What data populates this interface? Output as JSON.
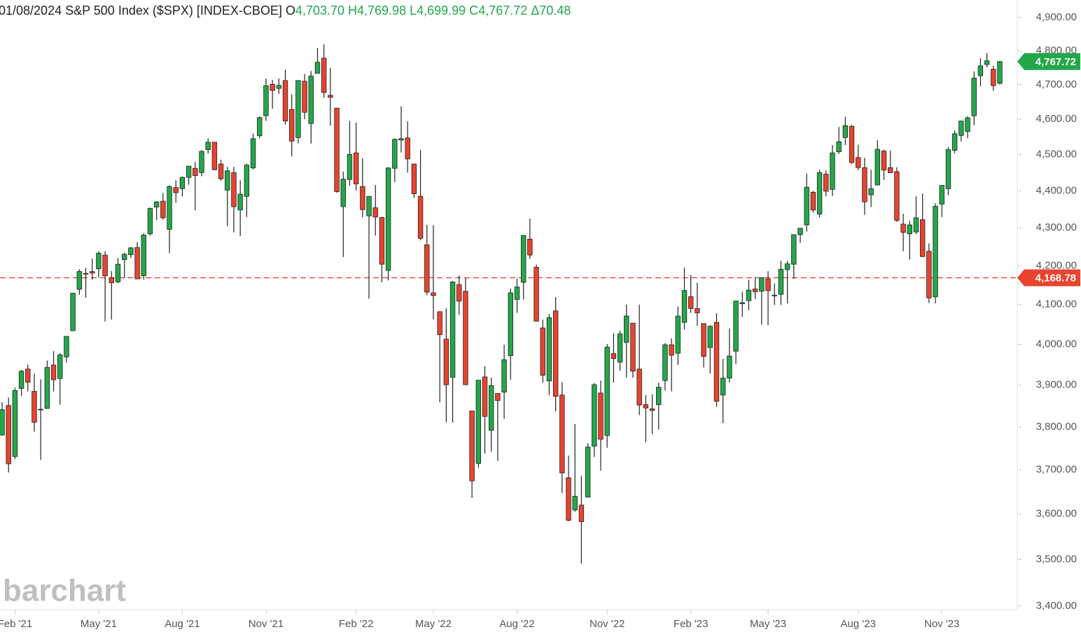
{
  "chart_data": {
    "type": "candlestick",
    "title": "01/08/2024 S&P 500 Index ($SPX) [INDEX-CBOE]",
    "header_values": [
      {
        "label": "O",
        "value": "4,703.70"
      },
      {
        "label": "H",
        "value": "4,769.98"
      },
      {
        "label": "L",
        "value": "4,699.99"
      },
      {
        "label": "C",
        "value": "4,767.72"
      },
      {
        "label": "Δ",
        "value": "70.48"
      }
    ],
    "watermark": "barchart",
    "log_scale": true,
    "up_color": "#22a84a",
    "down_color": "#e8432f",
    "ylim": [
      3400,
      4900
    ],
    "yticks": [
      {
        "value": 3400,
        "label": "3,400.00"
      },
      {
        "value": 3500,
        "label": "3,500.00"
      },
      {
        "value": 3600,
        "label": "3,600.00"
      },
      {
        "value": 3700,
        "label": "3,700.00"
      },
      {
        "value": 3800,
        "label": "3,800.00"
      },
      {
        "value": 3900,
        "label": "3,900.00"
      },
      {
        "value": 4000,
        "label": "4,000.00"
      },
      {
        "value": 4100,
        "label": "4,100.00"
      },
      {
        "value": 4200,
        "label": "4,200.00"
      },
      {
        "value": 4300,
        "label": "4,300.00"
      },
      {
        "value": 4400,
        "label": "4,400.00"
      },
      {
        "value": 4500,
        "label": "4,500.00"
      },
      {
        "value": 4600,
        "label": "4,600.00"
      },
      {
        "value": 4700,
        "label": "4,700.00"
      },
      {
        "value": 4800,
        "label": "4,800.00"
      },
      {
        "value": 4900,
        "label": "4,900.00"
      }
    ],
    "xticks": [
      {
        "value": 2,
        "label": "Feb '21"
      },
      {
        "value": 15,
        "label": "May '21"
      },
      {
        "value": 28,
        "label": "Aug '21"
      },
      {
        "value": 41,
        "label": "Nov '21"
      },
      {
        "value": 55,
        "label": "Feb '22"
      },
      {
        "value": 67,
        "label": "May '22"
      },
      {
        "value": 80,
        "label": "Aug '22"
      },
      {
        "value": 94,
        "label": "Nov '22"
      },
      {
        "value": 107,
        "label": "Feb '23"
      },
      {
        "value": 119,
        "label": "May '23"
      },
      {
        "value": 133,
        "label": "Aug '23"
      },
      {
        "value": 146,
        "label": "Nov '23"
      }
    ],
    "last_price": {
      "value": 4767.72,
      "label": "4,767.72"
    },
    "reference_line": {
      "value": 4168.78,
      "label": "4,168.78"
    },
    "open": [
      3781,
      3851,
      3731,
      3892,
      3939,
      3885,
      3842,
      3844,
      3949,
      3916,
      3969,
      4034,
      4139,
      4179,
      4185,
      4192,
      4228,
      4169,
      4158,
      4216,
      4229,
      4248,
      4174,
      4284,
      4356,
      4372,
      4296,
      4409,
      4406,
      4437,
      4462,
      4450,
      4514,
      4535,
      4474,
      4402,
      4450,
      4348,
      4385,
      4463,
      4553,
      4610,
      4701,
      4689,
      4712,
      4628,
      4548,
      4710,
      4588,
      4733,
      4778,
      4669,
      4632,
      4357,
      4431,
      4505,
      4412,
      4332,
      4354,
      4328,
      4188,
      4462,
      4541,
      4547,
      4474,
      4385,
      4255,
      4130,
      4082,
      4013,
      3919,
      4151,
      4134,
      3838,
      3715,
      3920,
      3792,
      3880,
      3883,
      3972,
      4113,
      4157,
      4270,
      4196,
      4041,
      3910,
      4084,
      3876,
      3682,
      3609,
      3620,
      3638,
      3755,
      3881,
      3780,
      3977,
      3956,
      4005,
      4053,
      3939,
      3853,
      3843,
      3853,
      3911,
      3999,
      3978,
      4055,
      4120,
      4090,
      4052,
      3992,
      4055,
      3876,
      3917,
      3983,
      4102,
      4110,
      4140,
      4134,
      4166,
      4124,
      4126,
      4190,
      4204,
      4282,
      4308,
      4396,
      4337,
      4446,
      4404,
      4508,
      4548,
      4580,
      4492,
      4464,
      4389,
      4416,
      4510,
      4464,
      4453,
      4310,
      4284,
      4289,
      4322,
      4238,
      4120,
      4364,
      4406,
      4512,
      4554,
      4565,
      4610,
      4726,
      4759,
      4745,
      4703.7
    ],
    "high": [
      3859,
      3870,
      3894,
      3937,
      3950,
      3928,
      3914,
      3960,
      3983,
      3978,
      4020,
      4130,
      4191,
      4195,
      4219,
      4238,
      4238,
      4186,
      4220,
      4234,
      4249,
      4262,
      4286,
      4355,
      4372,
      4394,
      4415,
      4429,
      4440,
      4469,
      4480,
      4513,
      4546,
      4535,
      4486,
      4466,
      4466,
      4429,
      4475,
      4559,
      4608,
      4718,
      4714,
      4718,
      4744,
      4672,
      4713,
      4731,
      4740,
      4808,
      4819,
      4749,
      4632,
      4453,
      4595,
      4590,
      4490,
      4385,
      4416,
      4329,
      4465,
      4546,
      4637,
      4594,
      4471,
      4513,
      4308,
      4307,
      4082,
      4091,
      4160,
      4175,
      4168,
      3838,
      3913,
      3946,
      3918,
      3880,
      3999,
      4141,
      4167,
      4280,
      4325,
      4203,
      4062,
      4076,
      4119,
      3907,
      3733,
      3807,
      3686,
      3762,
      3905,
      3911,
      4001,
      4028,
      4034,
      4100,
      4052,
      4100,
      3876,
      3878,
      3906,
      4003,
      4015,
      4095,
      4195,
      4176,
      4156,
      4052,
      4048,
      4078,
      3964,
      4040,
      4110,
      4133,
      4164,
      4170,
      4170,
      4186,
      4154,
      4213,
      4213,
      4282,
      4299,
      4448,
      4400,
      4458,
      4456,
      4527,
      4578,
      4607,
      4584,
      4528,
      4491,
      4458,
      4541,
      4514,
      4511,
      4465,
      4338,
      4319,
      4385,
      4393,
      4259,
      4366,
      4415,
      4521,
      4568,
      4595,
      4609,
      4739,
      4778,
      4793,
      4755,
      4769.98
    ],
    "low": [
      3780,
      3694,
      3725,
      3874,
      3885,
      3789,
      3723,
      3843,
      3885,
      3853,
      3955,
      4034,
      4125,
      4118,
      4164,
      4169,
      4057,
      4062,
      4155,
      4168,
      4220,
      4165,
      4164,
      4279,
      4321,
      4322,
      4233,
      4367,
      4385,
      4417,
      4347,
      4440,
      4503,
      4457,
      4428,
      4305,
      4288,
      4278,
      4329,
      4459,
      4546,
      4595,
      4630,
      4673,
      4585,
      4495,
      4532,
      4600,
      4531,
      4733,
      4662,
      4582,
      4395,
      4223,
      4414,
      4401,
      4328,
      4115,
      4279,
      4157,
      4162,
      4424,
      4506,
      4450,
      4381,
      4267,
      4124,
      4062,
      3859,
      3811,
      3810,
      4074,
      3900,
      3636,
      3705,
      3738,
      3742,
      3721,
      3819,
      3913,
      4079,
      4113,
      4218,
      4057,
      3906,
      3876,
      3837,
      3647,
      3584,
      3605,
      3491,
      3639,
      3730,
      3698,
      3751,
      3906,
      3935,
      3918,
      3918,
      3828,
      3764,
      3783,
      3794,
      3887,
      3885,
      3949,
      4037,
      4079,
      4047,
      3943,
      3928,
      3848,
      3809,
      3906,
      3951,
      4069,
      4086,
      4114,
      4049,
      4048,
      4099,
      4099,
      4103,
      4166,
      4260,
      4290,
      4341,
      4328,
      4385,
      4386,
      4502,
      4527,
      4474,
      4457,
      4335,
      4356,
      4416,
      4430,
      4449,
      4316,
      4238,
      4216,
      4283,
      4223,
      4104,
      4103,
      4329,
      4388,
      4504,
      4537,
      4546,
      4583,
      4695,
      4751,
      4682,
      4699.99
    ],
    "close": [
      3841,
      3714,
      3887,
      3934,
      3907,
      3811,
      3842,
      3943,
      3913,
      3974,
      4020,
      4129,
      4185,
      4180,
      4181,
      4233,
      4174,
      4156,
      4204,
      4230,
      4247,
      4166,
      4281,
      4352,
      4370,
      4327,
      4412,
      4395,
      4437,
      4468,
      4442,
      4509,
      4535,
      4458,
      4433,
      4455,
      4357,
      4391,
      4471,
      4545,
      4605,
      4697,
      4683,
      4698,
      4595,
      4538,
      4712,
      4620,
      4725,
      4766,
      4677,
      4663,
      4398,
      4432,
      4501,
      4419,
      4349,
      4385,
      4329,
      4204,
      4463,
      4543,
      4545,
      4488,
      4392,
      4272,
      4132,
      4123,
      4024,
      3901,
      4158,
      4109,
      3901,
      3675,
      3912,
      3825,
      3899,
      3863,
      3962,
      4130,
      4145,
      4280,
      4228,
      4058,
      3924,
      4067,
      3873,
      3693,
      3586,
      3640,
      3583,
      3753,
      3901,
      3771,
      3993,
      3965,
      4026,
      4071,
      3934,
      3852,
      3845,
      3839,
      3895,
      3999,
      3973,
      4071,
      4136,
      4090,
      4079,
      3970,
      4045,
      3861,
      3917,
      3971,
      4109,
      4105,
      4137,
      4133,
      4169,
      4136,
      4124,
      4191,
      4205,
      4282,
      4299,
      4410,
      4348,
      4450,
      4399,
      4505,
      4536,
      4582,
      4478,
      4464,
      4370,
      4406,
      4515,
      4457,
      4450,
      4320,
      4288,
      4308,
      4327,
      4224,
      4117,
      4358,
      4415,
      4514,
      4559,
      4595,
      4604,
      4719,
      4755,
      4770,
      4697,
      4767.72
    ]
  }
}
